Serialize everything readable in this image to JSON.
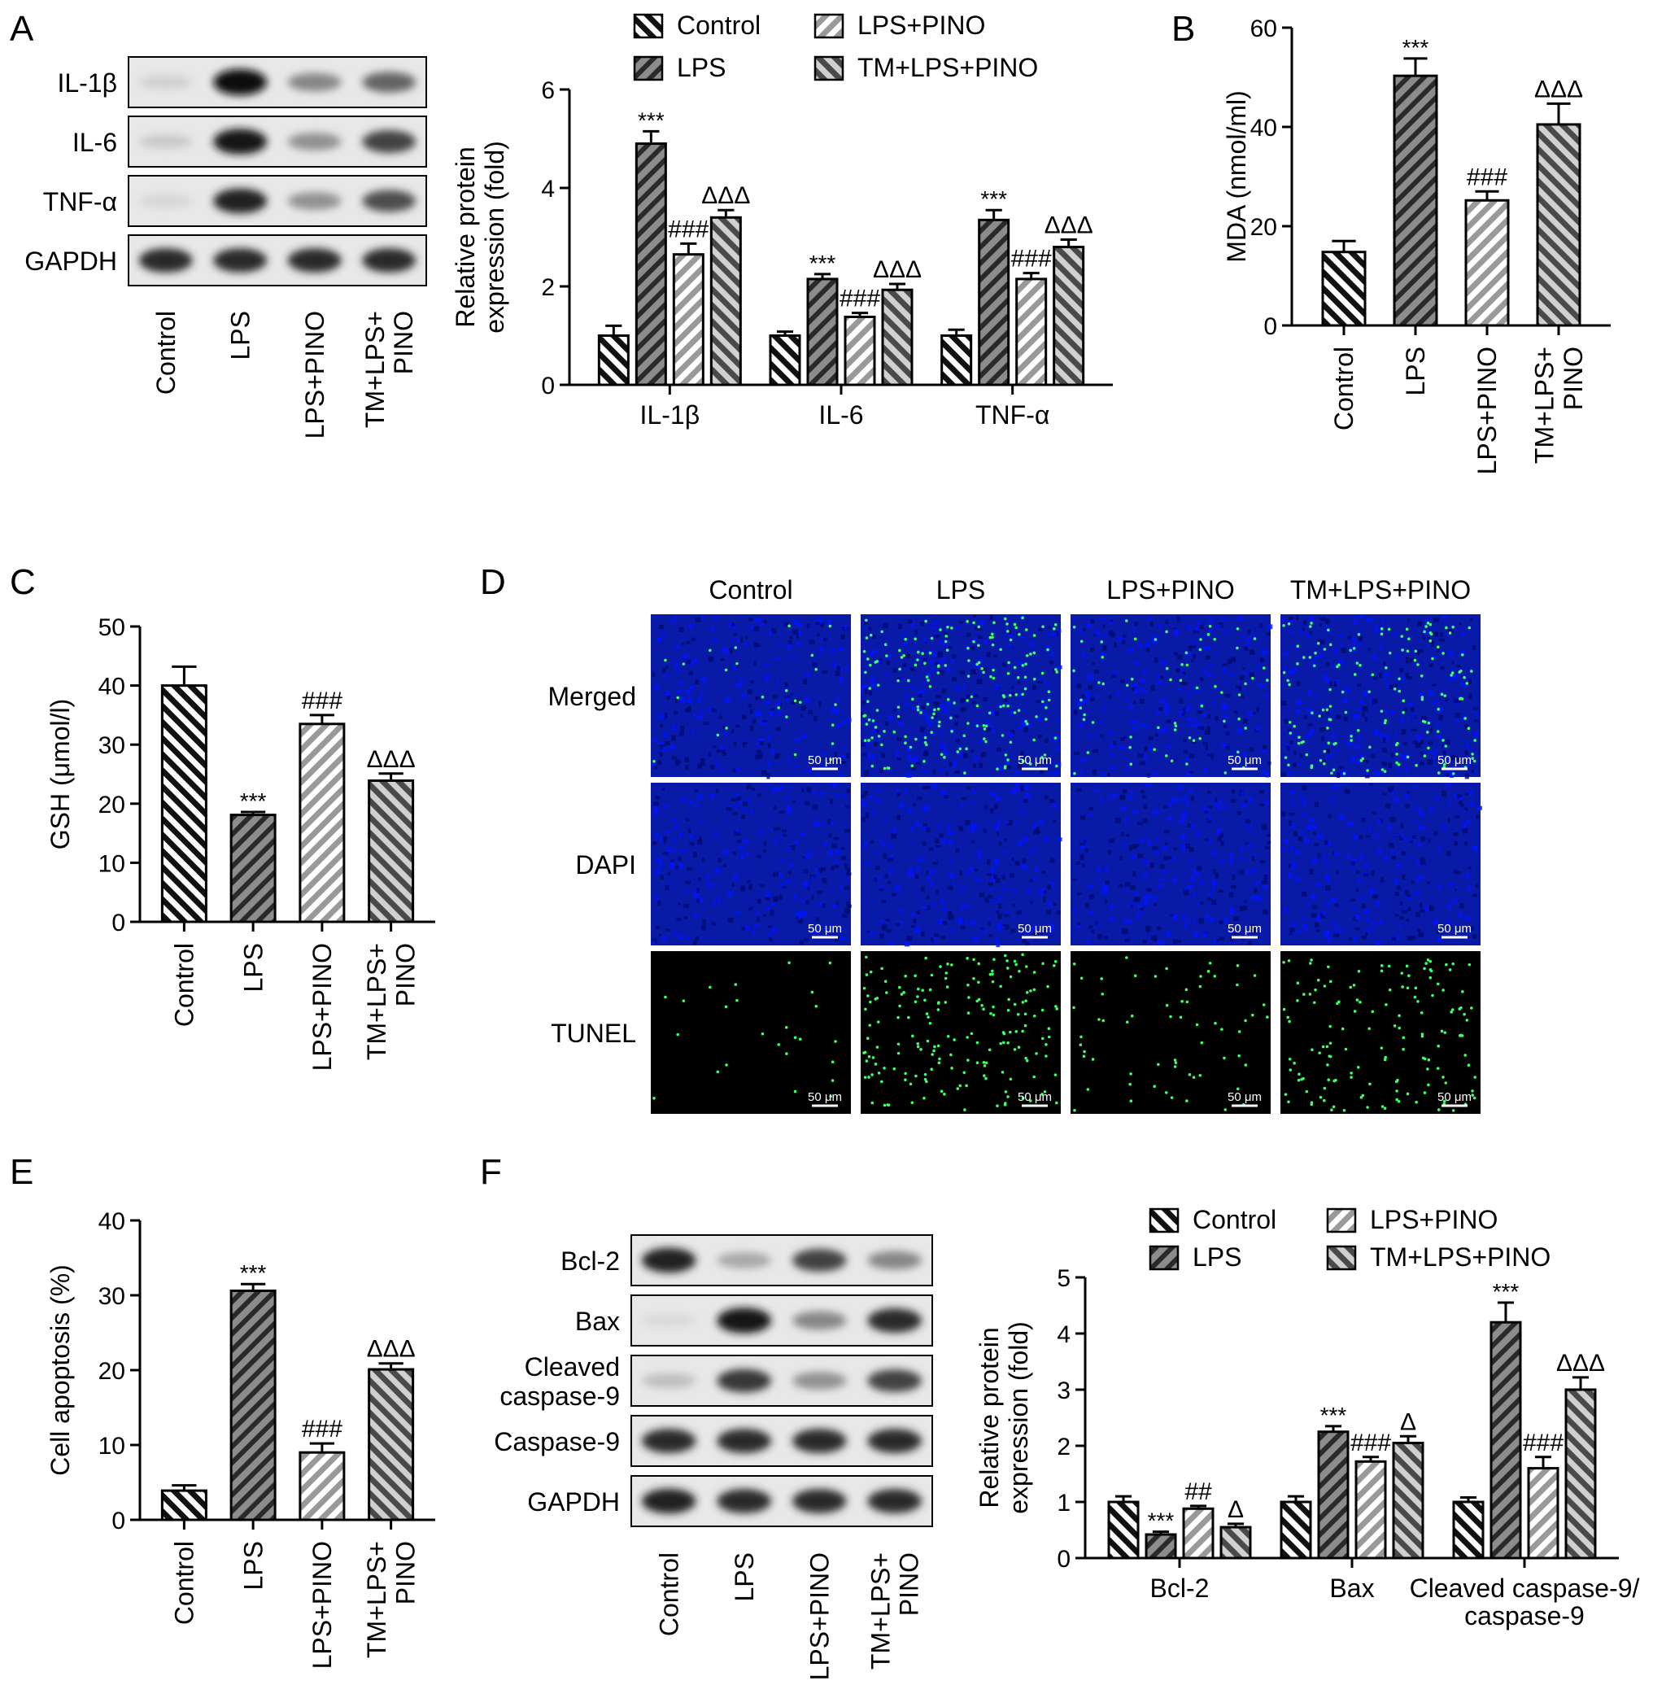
{
  "groups": [
    "Control",
    "LPS",
    "LPS+PINO",
    "TM+LPS+PINO"
  ],
  "groups_axis": [
    [
      "Control"
    ],
    [
      "LPS"
    ],
    [
      "LPS+PINO"
    ],
    [
      "TM+LPS+",
      "PINO"
    ]
  ],
  "panel_letters": [
    "A",
    "B",
    "C",
    "D",
    "E",
    "F"
  ],
  "scale_bar_label": "50 μm",
  "panelA_blot": {
    "rows": [
      "IL-1β",
      "IL-6",
      "TNF-α",
      "GAPDH"
    ],
    "band_intensity": [
      [
        0.12,
        1.0,
        0.45,
        0.6
      ],
      [
        0.15,
        0.95,
        0.4,
        0.75
      ],
      [
        0.1,
        0.9,
        0.4,
        0.7
      ],
      [
        0.85,
        0.85,
        0.85,
        0.85
      ]
    ]
  },
  "panelD": {
    "columns": [
      "Control",
      "LPS",
      "LPS+PINO",
      "TM+LPS+PINO"
    ],
    "rows": [
      "Merged",
      "DAPI",
      "TUNEL"
    ],
    "tunel_density": [
      0.06,
      0.45,
      0.15,
      0.35
    ]
  },
  "panelF_blot": {
    "rows": [
      "Bcl-2",
      "Bax",
      "Cleaved\ncaspase-9",
      "Caspase-9",
      "GAPDH"
    ],
    "band_intensity": [
      [
        0.9,
        0.3,
        0.75,
        0.45
      ],
      [
        0.08,
        0.95,
        0.45,
        0.85
      ],
      [
        0.2,
        0.8,
        0.4,
        0.75
      ],
      [
        0.85,
        0.85,
        0.85,
        0.85
      ],
      [
        0.9,
        0.85,
        0.85,
        0.85
      ]
    ]
  },
  "chart_data": [
    {
      "panel": "A",
      "type": "bar",
      "ylabel": "Relative protein\nexpression (fold)",
      "categories": [
        "IL-1β",
        "IL-6",
        "TNF-α"
      ],
      "ylim": [
        0,
        6
      ],
      "yticks": [
        0,
        2,
        4,
        6
      ],
      "legend": "top",
      "series": [
        {
          "name": "Control",
          "values": [
            1.0,
            1.0,
            1.0
          ],
          "errors": [
            0.2,
            0.08,
            0.12
          ],
          "labels": [
            "",
            "",
            ""
          ]
        },
        {
          "name": "LPS",
          "values": [
            4.9,
            2.15,
            3.35
          ],
          "errors": [
            0.25,
            0.1,
            0.2
          ],
          "labels": [
            "***",
            "***",
            "***"
          ]
        },
        {
          "name": "LPS+PINO",
          "values": [
            2.65,
            1.38,
            2.15
          ],
          "errors": [
            0.22,
            0.08,
            0.12
          ],
          "labels": [
            "###",
            "###",
            "###"
          ]
        },
        {
          "name": "TM+LPS+PINO",
          "values": [
            3.4,
            1.93,
            2.8
          ],
          "errors": [
            0.15,
            0.12,
            0.15
          ],
          "labels": [
            "ΔΔΔ",
            "ΔΔΔ",
            "ΔΔΔ"
          ]
        }
      ]
    },
    {
      "panel": "B",
      "type": "bar",
      "ylabel": "MDA (nmol/ml)",
      "categories": [
        "Control",
        "LPS",
        "LPS+PINO",
        "TM+LPS+PINO"
      ],
      "ylim": [
        0,
        60
      ],
      "yticks": [
        0,
        20,
        40,
        60
      ],
      "values": [
        14.8,
        50.3,
        25.2,
        40.5
      ],
      "errors": [
        2.2,
        3.5,
        1.8,
        4.2
      ],
      "labels": [
        "",
        "***",
        "###",
        "ΔΔΔ"
      ]
    },
    {
      "panel": "C",
      "type": "bar",
      "ylabel": "GSH (μmol/l)",
      "categories": [
        "Control",
        "LPS",
        "LPS+PINO",
        "TM+LPS+PINO"
      ],
      "ylim": [
        0,
        50
      ],
      "yticks": [
        0,
        10,
        20,
        30,
        40,
        50
      ],
      "values": [
        40.0,
        18.1,
        33.5,
        23.9
      ],
      "errors": [
        3.2,
        0.5,
        1.5,
        1.2
      ],
      "labels": [
        "",
        "***",
        "###",
        "ΔΔΔ"
      ]
    },
    {
      "panel": "E",
      "type": "bar",
      "ylabel": "Cell apoptosis (%)",
      "categories": [
        "Control",
        "LPS",
        "LPS+PINO",
        "TM+LPS+PINO"
      ],
      "ylim": [
        0,
        40
      ],
      "yticks": [
        0,
        10,
        20,
        30,
        40
      ],
      "values": [
        3.9,
        30.6,
        9.0,
        20.1
      ],
      "errors": [
        0.7,
        0.9,
        1.2,
        0.8
      ],
      "labels": [
        "",
        "***",
        "###",
        "ΔΔΔ"
      ]
    },
    {
      "panel": "F",
      "type": "bar",
      "ylabel": "Relative protein\nexpression (fold)",
      "categories": [
        "Bcl-2",
        "Bax",
        "Cleaved caspase-9/\ncaspase-9"
      ],
      "ylim": [
        0,
        5
      ],
      "yticks": [
        0,
        1,
        2,
        3,
        4,
        5
      ],
      "legend": "top",
      "series": [
        {
          "name": "Control",
          "values": [
            1.0,
            1.0,
            1.0
          ],
          "errors": [
            0.1,
            0.1,
            0.08
          ],
          "labels": [
            "",
            "",
            ""
          ]
        },
        {
          "name": "LPS",
          "values": [
            0.42,
            2.25,
            4.2
          ],
          "errors": [
            0.05,
            0.1,
            0.35
          ],
          "labels": [
            "***",
            "***",
            "***"
          ]
        },
        {
          "name": "LPS+PINO",
          "values": [
            0.88,
            1.72,
            1.6
          ],
          "errors": [
            0.05,
            0.08,
            0.2
          ],
          "labels": [
            "##",
            "###",
            "###"
          ]
        },
        {
          "name": "TM+LPS+PINO",
          "values": [
            0.55,
            2.05,
            3.0
          ],
          "errors": [
            0.06,
            0.12,
            0.22
          ],
          "labels": [
            "Δ",
            "Δ",
            "ΔΔΔ"
          ]
        }
      ]
    }
  ]
}
